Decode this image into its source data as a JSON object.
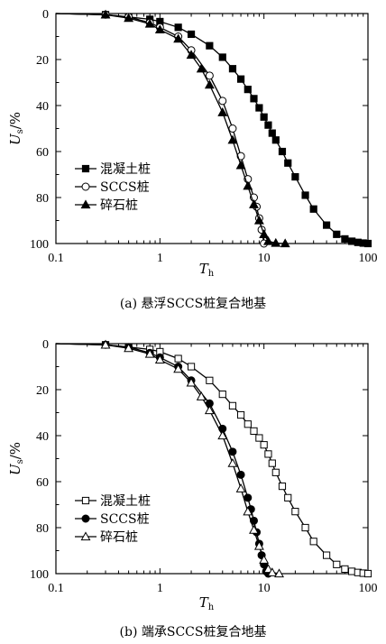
{
  "chart_data": [
    {
      "type": "line",
      "caption": "(a) 悬浮SCCS桩复合地基",
      "xlabel_main": "T",
      "xlabel_sub": "h",
      "ylabel_main": "U",
      "ylabel_sub": "s",
      "ylabel_unit": "/%",
      "x_scale": "log",
      "xlim": [
        0.1,
        100
      ],
      "ylim": [
        0,
        100
      ],
      "y_inverted": true,
      "x_ticks": [
        "0.1",
        "1",
        "10",
        "100"
      ],
      "y_ticks": [
        "0",
        "20",
        "40",
        "60",
        "80",
        "100"
      ],
      "legend_position": "lower-left",
      "series": [
        {
          "name": "混凝土桩",
          "marker": "filled-square",
          "x": [
            0.1,
            0.3,
            0.5,
            0.8,
            1.0,
            1.5,
            2.0,
            3.0,
            4.0,
            5.0,
            6.0,
            7.0,
            8.0,
            9.0,
            10.0,
            11.0,
            12.0,
            13.0,
            15.0,
            17.0,
            20.0,
            25.0,
            30.0,
            40.0,
            50.0,
            60.0,
            70.0,
            80.0,
            90.0,
            100.0
          ],
          "y": [
            0,
            0.5,
            1.5,
            2.5,
            3.5,
            6,
            9,
            14,
            19,
            24,
            28.5,
            33,
            37,
            41,
            45,
            48.5,
            52,
            55,
            60,
            65,
            71,
            79,
            85,
            92,
            96,
            98,
            99,
            99.5,
            99.8,
            100
          ]
        },
        {
          "name": "SCCS桩",
          "marker": "open-circle",
          "x": [
            0.1,
            0.3,
            0.5,
            0.8,
            1.0,
            1.5,
            2.0,
            3.0,
            4.0,
            5.0,
            6.0,
            7.0,
            8.0,
            8.5,
            9.0,
            9.5,
            10.0
          ],
          "y": [
            0,
            0.5,
            1.5,
            4,
            6,
            10,
            16,
            27,
            38,
            50,
            62,
            72,
            80,
            84,
            89,
            94,
            100
          ]
        },
        {
          "name": "碎石桩",
          "marker": "filled-triangle",
          "x": [
            0.1,
            0.3,
            0.5,
            0.8,
            1.0,
            1.5,
            2.0,
            2.5,
            3.0,
            4.0,
            5.0,
            6.0,
            7.0,
            8.0,
            9.0,
            10.0,
            11.0,
            13.0,
            16.0
          ],
          "y": [
            0,
            0.5,
            2,
            4.5,
            7,
            11,
            18,
            24,
            31,
            43,
            55,
            66,
            75,
            83,
            90,
            96,
            99,
            99.8,
            100
          ]
        }
      ]
    },
    {
      "type": "line",
      "caption": "(b) 端承SCCS桩复合地基",
      "xlabel_main": "T",
      "xlabel_sub": "h",
      "ylabel_main": "U",
      "ylabel_sub": "s",
      "ylabel_unit": "/%",
      "x_scale": "log",
      "xlim": [
        0.1,
        100
      ],
      "ylim": [
        0,
        100
      ],
      "y_inverted": true,
      "x_ticks": [
        "0.1",
        "1",
        "10",
        "100"
      ],
      "y_ticks": [
        "0",
        "20",
        "40",
        "60",
        "80",
        "100"
      ],
      "legend_position": "lower-left",
      "series": [
        {
          "name": "混凝土桩",
          "marker": "open-square",
          "x": [
            0.1,
            0.3,
            0.5,
            0.8,
            1.0,
            1.5,
            2.0,
            3.0,
            4.0,
            5.0,
            6.0,
            7.0,
            8.0,
            9.0,
            10.0,
            11.0,
            12.0,
            13.0,
            15.0,
            17.0,
            20.0,
            25.0,
            30.0,
            40.0,
            50.0,
            60.0,
            70.0,
            80.0,
            90.0,
            100.0
          ],
          "y": [
            0,
            0.5,
            1.5,
            2.5,
            3.5,
            6.5,
            10,
            16,
            22,
            27,
            31,
            35,
            38,
            41,
            44,
            48,
            52,
            56,
            62,
            67,
            73,
            80,
            86,
            92,
            96,
            98,
            99,
            99.5,
            99.8,
            100
          ]
        },
        {
          "name": "SCCS桩",
          "marker": "filled-circle",
          "x": [
            0.1,
            0.3,
            0.5,
            0.8,
            1.0,
            1.5,
            2.0,
            3.0,
            4.0,
            5.0,
            6.0,
            7.0,
            7.5,
            8.0,
            8.5,
            9.0,
            9.5,
            10.0,
            10.5,
            11.0
          ],
          "y": [
            0,
            0.5,
            1.5,
            4,
            6,
            10,
            16,
            26,
            37,
            47,
            57,
            67,
            72,
            77,
            82,
            87,
            92,
            96,
            99,
            100
          ]
        },
        {
          "name": "碎石桩",
          "marker": "open-triangle",
          "x": [
            0.1,
            0.3,
            0.5,
            0.8,
            1.0,
            1.5,
            2.0,
            2.5,
            3.0,
            4.0,
            5.0,
            6.0,
            7.0,
            8.0,
            9.0,
            10.0,
            11.0,
            12.0,
            14.0
          ],
          "y": [
            0,
            0.5,
            2,
            4.5,
            7,
            11,
            17,
            23,
            29,
            40,
            52,
            63,
            73,
            81,
            88,
            94,
            98,
            99.5,
            100
          ]
        }
      ]
    }
  ]
}
